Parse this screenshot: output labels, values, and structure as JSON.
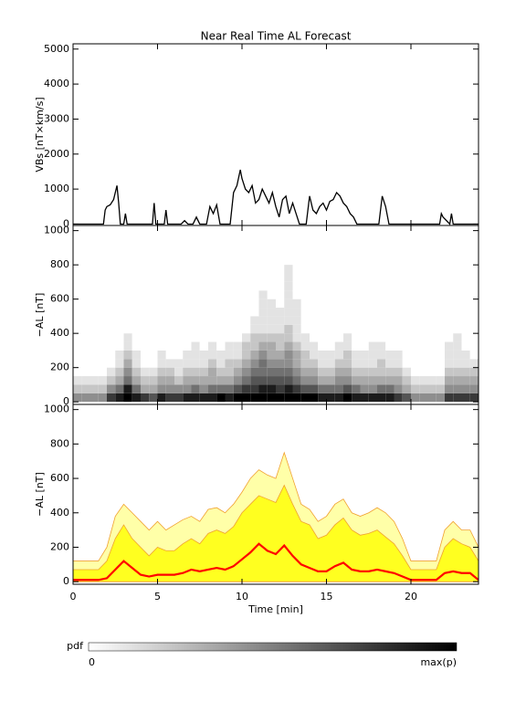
{
  "chart_data": [
    {
      "type": "line",
      "title": "Near Real Time AL Forecast",
      "ylabel": "VBs [nT×km/s]",
      "color": "#000000",
      "xlim": [
        0,
        24
      ],
      "xticks": [
        0,
        5,
        10,
        15,
        20
      ],
      "ylim": [
        -40,
        5150
      ],
      "yticks": [
        0,
        1000,
        2000,
        3000,
        4000,
        5000
      ],
      "x": [
        0,
        1.8,
        1.9,
        2.0,
        2.2,
        2.4,
        2.5,
        2.6,
        2.7,
        2.8,
        3.0,
        3.1,
        3.2,
        4.7,
        4.8,
        4.9,
        5.4,
        5.5,
        5.6,
        6.4,
        6.6,
        6.8,
        7.1,
        7.3,
        7.5,
        7.9,
        8.1,
        8.3,
        8.5,
        8.7,
        9.3,
        9.5,
        9.7,
        9.9,
        10.0,
        10.2,
        10.4,
        10.6,
        10.8,
        11.0,
        11.2,
        11.4,
        11.6,
        11.8,
        12.0,
        12.2,
        12.4,
        12.6,
        12.8,
        13.0,
        13.2,
        13.4,
        13.8,
        14.0,
        14.2,
        14.4,
        14.6,
        14.8,
        15.0,
        15.2,
        15.4,
        15.6,
        15.8,
        16.0,
        16.2,
        16.4,
        16.6,
        16.8,
        18.1,
        18.3,
        18.5,
        18.7,
        21.7,
        21.8,
        21.9,
        22.1,
        22.3,
        22.4,
        22.5,
        24
      ],
      "values": [
        0,
        0,
        400,
        500,
        550,
        700,
        900,
        1100,
        600,
        0,
        0,
        300,
        0,
        0,
        600,
        0,
        0,
        400,
        0,
        0,
        100,
        0,
        0,
        200,
        0,
        0,
        500,
        300,
        550,
        0,
        0,
        900,
        1100,
        1550,
        1300,
        1000,
        900,
        1100,
        600,
        700,
        1000,
        800,
        600,
        900,
        500,
        200,
        700,
        800,
        300,
        600,
        300,
        0,
        0,
        800,
        400,
        300,
        500,
        600,
        400,
        650,
        700,
        900,
        800,
        600,
        500,
        300,
        200,
        0,
        0,
        800,
        500,
        0,
        0,
        300,
        200,
        100,
        0,
        300,
        0,
        0
      ]
    },
    {
      "type": "heatmap",
      "ylabel": "−AL [nT]",
      "xlim": [
        0,
        24
      ],
      "xticks": [
        0,
        5,
        10,
        15,
        20
      ],
      "ylim": [
        -15,
        1030
      ],
      "yticks": [
        0,
        200,
        400,
        600,
        800,
        1000
      ],
      "xbins": [
        0,
        0.5,
        1,
        1.5,
        2,
        2.5,
        3,
        3.5,
        4,
        4.5,
        5,
        5.5,
        6,
        6.5,
        7,
        7.5,
        8,
        8.5,
        9,
        9.5,
        10,
        10.5,
        11,
        11.5,
        12,
        12.5,
        13,
        13.5,
        14,
        14.5,
        15,
        15.5,
        16,
        16.5,
        17,
        17.5,
        18,
        18.5,
        19,
        19.5,
        20,
        20.5,
        21,
        21.5,
        22,
        22.5,
        23,
        23.5,
        24
      ],
      "ybins": [
        0,
        50,
        100,
        150,
        200,
        250,
        300,
        350,
        400,
        450,
        500,
        550,
        600,
        650,
        700,
        750,
        800
      ],
      "zlim": [
        0,
        9
      ],
      "values": [
        [
          4,
          2,
          1,
          0,
          0,
          0,
          0,
          0,
          0,
          0,
          0,
          0,
          0,
          0,
          0,
          0
        ],
        [
          4,
          2,
          1,
          0,
          0,
          0,
          0,
          0,
          0,
          0,
          0,
          0,
          0,
          0,
          0,
          0
        ],
        [
          4,
          2,
          1,
          0,
          0,
          0,
          0,
          0,
          0,
          0,
          0,
          0,
          0,
          0,
          0,
          0
        ],
        [
          4,
          2,
          1,
          0,
          0,
          0,
          0,
          0,
          0,
          0,
          0,
          0,
          0,
          0,
          0,
          0
        ],
        [
          7,
          4,
          2,
          1,
          0,
          0,
          0,
          0,
          0,
          0,
          0,
          0,
          0,
          0,
          0,
          0
        ],
        [
          8,
          5,
          3,
          2,
          1,
          1,
          0,
          0,
          0,
          0,
          0,
          0,
          0,
          0,
          0,
          0
        ],
        [
          9,
          8,
          5,
          4,
          3,
          2,
          1,
          1,
          0,
          0,
          0,
          0,
          0,
          0,
          0,
          0
        ],
        [
          8,
          5,
          3,
          2,
          1,
          1,
          0,
          0,
          0,
          0,
          0,
          0,
          0,
          0,
          0,
          0
        ],
        [
          7,
          3,
          2,
          1,
          0,
          0,
          0,
          0,
          0,
          0,
          0,
          0,
          0,
          0,
          0,
          0
        ],
        [
          6,
          3,
          2,
          1,
          0,
          0,
          0,
          0,
          0,
          0,
          0,
          0,
          0,
          0,
          0,
          0
        ],
        [
          8,
          4,
          3,
          2,
          1,
          1,
          0,
          0,
          0,
          0,
          0,
          0,
          0,
          0,
          0,
          0
        ],
        [
          7,
          4,
          3,
          2,
          1,
          0,
          0,
          0,
          0,
          0,
          0,
          0,
          0,
          0,
          0,
          0
        ],
        [
          7,
          4,
          2,
          1,
          1,
          0,
          0,
          0,
          0,
          0,
          0,
          0,
          0,
          0,
          0,
          0
        ],
        [
          8,
          4,
          3,
          2,
          1,
          1,
          0,
          0,
          0,
          0,
          0,
          0,
          0,
          0,
          0,
          0
        ],
        [
          8,
          5,
          3,
          2,
          1,
          1,
          1,
          0,
          0,
          0,
          0,
          0,
          0,
          0,
          0,
          0
        ],
        [
          8,
          4,
          3,
          2,
          1,
          1,
          0,
          0,
          0,
          0,
          0,
          0,
          0,
          0,
          0,
          0
        ],
        [
          8,
          5,
          3,
          3,
          2,
          1,
          1,
          0,
          0,
          0,
          0,
          0,
          0,
          0,
          0,
          0
        ],
        [
          9,
          5,
          3,
          2,
          1,
          1,
          0,
          0,
          0,
          0,
          0,
          0,
          0,
          0,
          0,
          0
        ],
        [
          8,
          5,
          3,
          2,
          2,
          1,
          1,
          0,
          0,
          0,
          0,
          0,
          0,
          0,
          0,
          0
        ],
        [
          9,
          6,
          4,
          3,
          2,
          1,
          1,
          0,
          0,
          0,
          0,
          0,
          0,
          0,
          0,
          0
        ],
        [
          9,
          7,
          5,
          4,
          3,
          2,
          2,
          1,
          0,
          0,
          0,
          0,
          0,
          0,
          0,
          0
        ],
        [
          9,
          7,
          6,
          5,
          4,
          3,
          2,
          2,
          1,
          1,
          0,
          0,
          0,
          0,
          0,
          0
        ],
        [
          9,
          8,
          6,
          5,
          5,
          4,
          3,
          2,
          1,
          1,
          1,
          1,
          1,
          0,
          0,
          0
        ],
        [
          9,
          8,
          6,
          5,
          4,
          3,
          3,
          2,
          1,
          1,
          1,
          1,
          0,
          0,
          0,
          0
        ],
        [
          9,
          7,
          6,
          5,
          4,
          3,
          2,
          2,
          1,
          1,
          1,
          0,
          0,
          0,
          0,
          0
        ],
        [
          9,
          8,
          6,
          5,
          4,
          4,
          3,
          2,
          2,
          1,
          1,
          1,
          1,
          1,
          1,
          1
        ],
        [
          9,
          7,
          5,
          4,
          3,
          3,
          2,
          1,
          1,
          1,
          1,
          1,
          0,
          0,
          0,
          0
        ],
        [
          9,
          6,
          4,
          3,
          2,
          2,
          1,
          1,
          0,
          0,
          0,
          0,
          0,
          0,
          0,
          0
        ],
        [
          9,
          6,
          4,
          3,
          2,
          1,
          1,
          0,
          0,
          0,
          0,
          0,
          0,
          0,
          0,
          0
        ],
        [
          8,
          5,
          3,
          2,
          1,
          1,
          0,
          0,
          0,
          0,
          0,
          0,
          0,
          0,
          0,
          0
        ],
        [
          8,
          5,
          3,
          2,
          1,
          1,
          0,
          0,
          0,
          0,
          0,
          0,
          0,
          0,
          0,
          0
        ],
        [
          8,
          5,
          4,
          3,
          2,
          1,
          1,
          0,
          0,
          0,
          0,
          0,
          0,
          0,
          0,
          0
        ],
        [
          9,
          6,
          4,
          3,
          2,
          2,
          1,
          1,
          0,
          0,
          0,
          0,
          0,
          0,
          0,
          0
        ],
        [
          8,
          5,
          3,
          2,
          1,
          1,
          0,
          0,
          0,
          0,
          0,
          0,
          0,
          0,
          0,
          0
        ],
        [
          8,
          4,
          3,
          2,
          1,
          1,
          0,
          0,
          0,
          0,
          0,
          0,
          0,
          0,
          0,
          0
        ],
        [
          8,
          4,
          3,
          2,
          1,
          1,
          1,
          0,
          0,
          0,
          0,
          0,
          0,
          0,
          0,
          0
        ],
        [
          8,
          5,
          3,
          2,
          2,
          1,
          1,
          0,
          0,
          0,
          0,
          0,
          0,
          0,
          0,
          0
        ],
        [
          8,
          5,
          3,
          2,
          1,
          1,
          0,
          0,
          0,
          0,
          0,
          0,
          0,
          0,
          0,
          0
        ],
        [
          7,
          4,
          3,
          2,
          1,
          1,
          0,
          0,
          0,
          0,
          0,
          0,
          0,
          0,
          0,
          0
        ],
        [
          6,
          3,
          2,
          1,
          0,
          0,
          0,
          0,
          0,
          0,
          0,
          0,
          0,
          0,
          0,
          0
        ],
        [
          4,
          2,
          1,
          0,
          0,
          0,
          0,
          0,
          0,
          0,
          0,
          0,
          0,
          0,
          0,
          0
        ],
        [
          4,
          2,
          1,
          0,
          0,
          0,
          0,
          0,
          0,
          0,
          0,
          0,
          0,
          0,
          0,
          0
        ],
        [
          4,
          2,
          1,
          0,
          0,
          0,
          0,
          0,
          0,
          0,
          0,
          0,
          0,
          0,
          0,
          0
        ],
        [
          4,
          2,
          1,
          0,
          0,
          0,
          0,
          0,
          0,
          0,
          0,
          0,
          0,
          0,
          0,
          0
        ],
        [
          7,
          4,
          3,
          2,
          1,
          1,
          1,
          0,
          0,
          0,
          0,
          0,
          0,
          0,
          0,
          0
        ],
        [
          7,
          4,
          3,
          2,
          1,
          1,
          1,
          1,
          0,
          0,
          0,
          0,
          0,
          0,
          0,
          0
        ],
        [
          7,
          4,
          3,
          2,
          1,
          1,
          0,
          0,
          0,
          0,
          0,
          0,
          0,
          0,
          0,
          0
        ],
        [
          7,
          4,
          3,
          2,
          1,
          0,
          0,
          0,
          0,
          0,
          0,
          0,
          0,
          0,
          0,
          0
        ]
      ],
      "colorbar": {
        "label": "pdf",
        "ticks": [
          0,
          {
            "value": 9,
            "label": "max(p)"
          }
        ]
      }
    },
    {
      "type": "area",
      "ylabel": "−AL [nT]",
      "xlabel": "Time [min]",
      "edge_color": "#f0a030",
      "xlim": [
        0,
        24
      ],
      "xticks": [
        0,
        5,
        10,
        15,
        20
      ],
      "ylim": [
        -15,
        1030
      ],
      "yticks": [
        0,
        200,
        400,
        600,
        800,
        1000
      ],
      "x": [
        0,
        0.5,
        1,
        1.5,
        2,
        2.5,
        3,
        3.5,
        4,
        4.5,
        5,
        5.5,
        6,
        6.5,
        7,
        7.5,
        8,
        8.5,
        9,
        9.5,
        10,
        10.5,
        11,
        11.5,
        12,
        12.5,
        13,
        13.5,
        14,
        14.5,
        15,
        15.5,
        16,
        16.5,
        17,
        17.5,
        18,
        18.5,
        19,
        19.5,
        20,
        20.5,
        21,
        21.5,
        22,
        22.5,
        23,
        23.5,
        24
      ],
      "series": [
        {
          "color": "#ffffa8",
          "values": [
            120,
            120,
            120,
            120,
            200,
            380,
            450,
            400,
            350,
            300,
            350,
            300,
            330,
            360,
            380,
            350,
            420,
            430,
            400,
            450,
            520,
            600,
            650,
            620,
            600,
            750,
            600,
            450,
            420,
            350,
            380,
            450,
            480,
            400,
            380,
            400,
            430,
            400,
            350,
            250,
            120,
            120,
            120,
            120,
            300,
            350,
            300,
            300,
            200
          ]
        },
        {
          "color": "#ffff20",
          "values": [
            70,
            70,
            70,
            70,
            120,
            250,
            330,
            250,
            200,
            150,
            200,
            180,
            180,
            220,
            250,
            220,
            280,
            300,
            280,
            320,
            400,
            450,
            500,
            480,
            460,
            560,
            450,
            350,
            330,
            250,
            270,
            330,
            370,
            300,
            270,
            280,
            300,
            260,
            220,
            150,
            70,
            70,
            70,
            70,
            200,
            250,
            220,
            200,
            120
          ]
        },
        {
          "color": "#ff0000",
          "values": [
            10,
            10,
            10,
            10,
            20,
            70,
            120,
            80,
            40,
            30,
            40,
            40,
            40,
            50,
            70,
            60,
            70,
            80,
            70,
            90,
            130,
            170,
            220,
            180,
            160,
            210,
            150,
            100,
            80,
            60,
            60,
            90,
            110,
            70,
            60,
            60,
            70,
            60,
            50,
            30,
            10,
            10,
            10,
            10,
            50,
            60,
            50,
            50,
            10
          ]
        }
      ]
    }
  ]
}
